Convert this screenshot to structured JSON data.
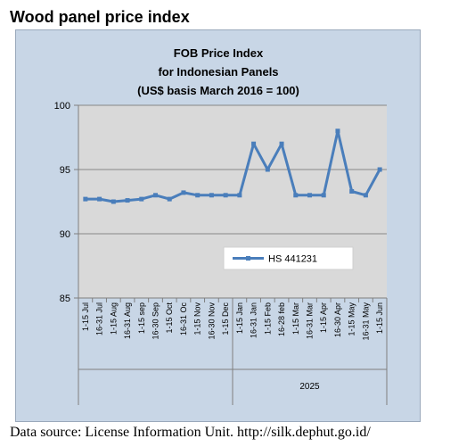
{
  "page": {
    "heading": "Wood panel price index",
    "source": "Data source: License Information Unit. http://silk.dephut.go.id/"
  },
  "chart_data": {
    "type": "line",
    "title_lines": [
      "FOB Price Index",
      "for Indonesian Panels",
      "(US$ basis March 2016 = 100)"
    ],
    "categories": [
      "1-15 Jul",
      "16-31 Jul",
      "1-15 Aug",
      "16-31 Aug",
      "1-15 sep",
      "16-30 Sep",
      "1-15 Oct",
      "16-31 Oc",
      "1-15 Nov",
      "16-30 Nov",
      "1-15 Dec",
      "1-15 Jan",
      "16-31 Jan",
      "1-15 Feb",
      "16-28 feb",
      "1-15 Mar",
      "16-31 Mar",
      "1-15 Apr",
      "16-30 Apr",
      "1-15 May",
      "16-31 May",
      "1-15 Jun"
    ],
    "group_label": "2025",
    "group_start_index": 11,
    "series": [
      {
        "name": "HS 441231",
        "values": [
          92.7,
          92.7,
          92.5,
          92.6,
          92.7,
          93.0,
          92.7,
          93.2,
          93.0,
          93.0,
          93.0,
          93.0,
          97.0,
          95.0,
          97.0,
          93.0,
          93.0,
          93.0,
          98.0,
          93.3,
          93.0,
          95.0
        ]
      }
    ],
    "ylim": [
      85,
      100
    ],
    "yticks": [
      85,
      90,
      95,
      100
    ],
    "grid": true,
    "legend_position": "inside-center-right",
    "colors": {
      "line": "#4a7ebb",
      "plot_bg": "#d9d9d9",
      "chart_bg": "#c8d6e6",
      "grid": "#868686"
    }
  }
}
